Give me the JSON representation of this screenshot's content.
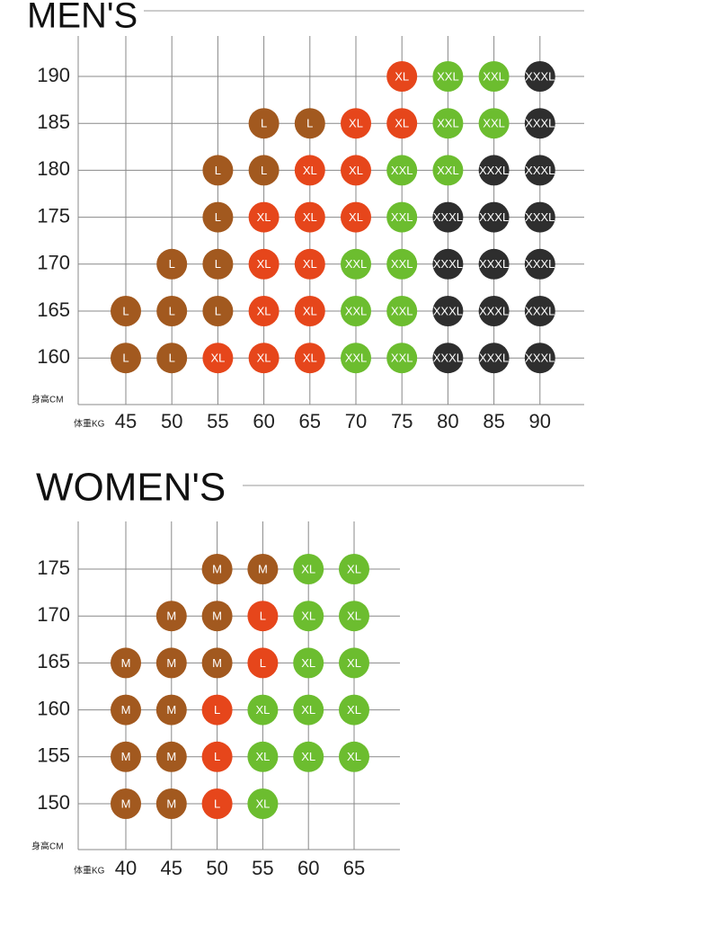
{
  "panels": [
    {
      "title": "MEN'S",
      "y_label": "身高CM",
      "x_label": "体重KG",
      "heights": [
        "190",
        "185",
        "180",
        "175",
        "170",
        "165",
        "160"
      ],
      "weights": [
        "45",
        "50",
        "55",
        "60",
        "65",
        "70",
        "75",
        "80",
        "85",
        "90"
      ],
      "size_colors": {
        "L": "#a2591f",
        "XL": "#e6461b",
        "XXL": "#6cbd2f",
        "XXXL": "#2e2e2e"
      },
      "rows": [
        [
          null,
          null,
          null,
          null,
          null,
          null,
          "XL",
          "XXL",
          "XXL",
          "XXXL"
        ],
        [
          null,
          null,
          null,
          "L",
          "L",
          "XL",
          "XL",
          "XXL",
          "XXL",
          "XXXL"
        ],
        [
          null,
          null,
          "L",
          "L",
          "XL",
          "XL",
          "XXL",
          "XXL",
          "XXXL",
          "XXXL"
        ],
        [
          null,
          null,
          "L",
          "XL",
          "XL",
          "XL",
          "XXL",
          "XXXL",
          "XXXL",
          "XXXL"
        ],
        [
          null,
          "L",
          "L",
          "XL",
          "XL",
          "XXL",
          "XXL",
          "XXXL",
          "XXXL",
          "XXXL"
        ],
        [
          "L",
          "L",
          "L",
          "XL",
          "XL",
          "XXL",
          "XXL",
          "XXXL",
          "XXXL",
          "XXXL"
        ],
        [
          "L",
          "L",
          "XL",
          "XL",
          "XL",
          "XXL",
          "XXL",
          "XXXL",
          "XXXL",
          "XXXL"
        ]
      ]
    },
    {
      "title": "WOMEN'S",
      "y_label": "身高CM",
      "x_label": "体重KG",
      "heights": [
        "175",
        "170",
        "165",
        "160",
        "155",
        "150"
      ],
      "weights": [
        "40",
        "45",
        "50",
        "55",
        "60",
        "65"
      ],
      "size_colors": {
        "M": "#a2591f",
        "L": "#e6461b",
        "XL": "#6cbd2f"
      },
      "rows": [
        [
          null,
          null,
          "M",
          "M",
          "XL",
          "XL"
        ],
        [
          null,
          "M",
          "M",
          "L",
          "XL",
          "XL"
        ],
        [
          "M",
          "M",
          "M",
          "L",
          "XL",
          "XL"
        ],
        [
          "M",
          "M",
          "L",
          "XL",
          "XL",
          "XL"
        ],
        [
          "M",
          "M",
          "L",
          "XL",
          "XL",
          "XL"
        ],
        [
          "M",
          "M",
          "L",
          "XL",
          null,
          null
        ]
      ]
    }
  ]
}
